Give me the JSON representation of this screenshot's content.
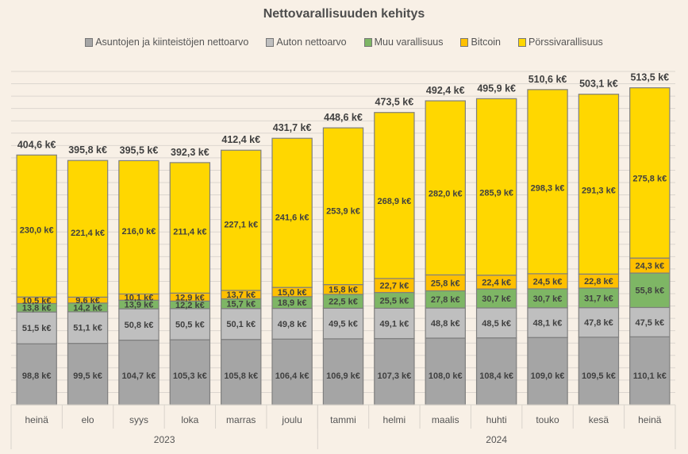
{
  "chart_data": {
    "type": "bar",
    "stacked": true,
    "title": "Nettovarallisuuden kehitys",
    "xlabel": "",
    "ylabel": "",
    "ylim": [
      0,
      540
    ],
    "y_gridline_step": 20,
    "grid": true,
    "legend_position": "top",
    "unit_suffix": " k€",
    "categories": [
      "heinä",
      "elo",
      "syys",
      "loka",
      "marras",
      "joulu",
      "tammi",
      "helmi",
      "maalis",
      "huhti",
      "touko",
      "kesä",
      "heinä"
    ],
    "category_groups": [
      {
        "label": "2023",
        "count": 6
      },
      {
        "label": "2024",
        "count": 7
      }
    ],
    "series": [
      {
        "name": "Asuntojen ja kiinteistöjen nettoarvo",
        "color": "#a5a5a5",
        "values": [
          98.8,
          99.5,
          104.7,
          105.3,
          105.8,
          106.4,
          106.9,
          107.3,
          108.0,
          108.4,
          109.0,
          109.5,
          110.1
        ]
      },
      {
        "name": "Auton nettoarvo",
        "color": "#bfbfbf",
        "values": [
          51.5,
          51.1,
          50.8,
          50.5,
          50.1,
          49.8,
          49.5,
          49.1,
          48.8,
          48.5,
          48.1,
          47.8,
          47.5
        ]
      },
      {
        "name": "Muu varallisuus",
        "color": "#7eb665",
        "values": [
          13.8,
          14.2,
          13.9,
          12.2,
          15.7,
          18.9,
          22.5,
          25.5,
          27.8,
          30.7,
          30.7,
          31.7,
          55.8
        ]
      },
      {
        "name": "Bitcoin",
        "color": "#ffc000",
        "values": [
          10.5,
          9.6,
          10.1,
          12.9,
          13.7,
          15.0,
          15.8,
          22.7,
          25.8,
          22.4,
          24.5,
          22.8,
          24.3
        ]
      },
      {
        "name": "Pörssivarallisuus",
        "color": "#ffd700",
        "values": [
          230.0,
          221.4,
          216.0,
          211.4,
          227.1,
          241.6,
          253.9,
          268.9,
          282.0,
          285.9,
          298.3,
          291.3,
          275.8
        ]
      }
    ],
    "totals": [
      404.6,
      395.8,
      395.5,
      392.3,
      412.4,
      431.7,
      448.6,
      473.5,
      492.4,
      495.9,
      510.6,
      503.1,
      513.5
    ]
  }
}
